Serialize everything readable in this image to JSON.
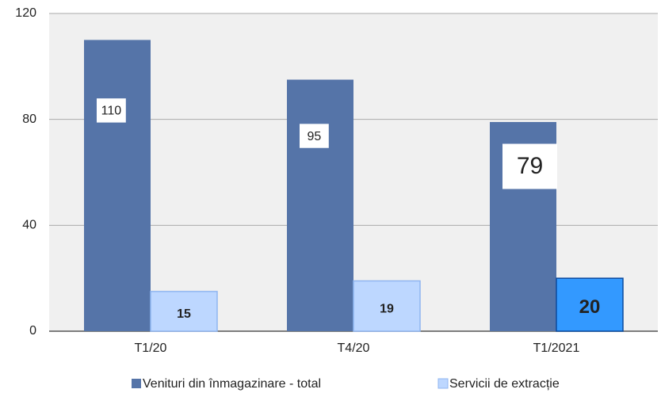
{
  "chart_data": {
    "type": "bar",
    "categories": [
      "T1/20",
      "T4/20",
      "T1/2021"
    ],
    "series": [
      {
        "name": "Venituri din înmagazinare - total",
        "color": "#5574a8",
        "values": [
          110,
          95,
          79
        ]
      },
      {
        "name": "Servicii de extracție",
        "color": "#bdd7ff",
        "colors": [
          "#bdd7ff",
          "#bdd7ff",
          "#3399ff"
        ],
        "values": [
          15,
          19,
          20
        ]
      }
    ],
    "ylim": [
      0,
      120
    ],
    "yticks": [
      0,
      40,
      80,
      120
    ],
    "grid": true,
    "legend": "bottom"
  }
}
